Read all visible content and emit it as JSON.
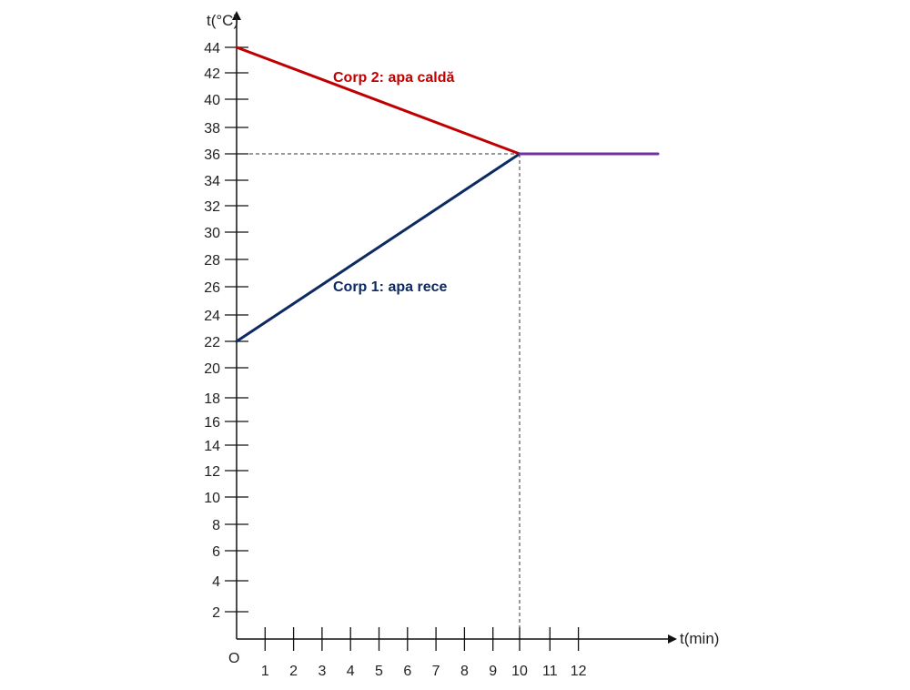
{
  "chart_data": {
    "type": "line",
    "title": "",
    "xlabel": "t(min)",
    "ylabel": "t(°C)",
    "origin_label": "O",
    "x_ticks": [
      "1",
      "2",
      "3",
      "4",
      "5",
      "6",
      "7",
      "8",
      "9",
      "10",
      "11",
      "12"
    ],
    "y_ticks": [
      "2",
      "4",
      "6",
      "8",
      "10",
      "12",
      "14",
      "16",
      "18",
      "20",
      "22",
      "24",
      "26",
      "28",
      "30",
      "32",
      "34",
      "36",
      "38",
      "40",
      "42",
      "44"
    ],
    "xlim": [
      0,
      14
    ],
    "ylim": [
      0,
      46
    ],
    "grid": false,
    "series": [
      {
        "name": "Corp 2: apa caldă",
        "color": "#c00000",
        "points": [
          [
            0,
            44
          ],
          [
            10,
            36
          ]
        ]
      },
      {
        "name": "Corp 1: apa rece",
        "color": "#0d2a63",
        "points": [
          [
            0,
            22
          ],
          [
            10,
            36
          ]
        ]
      },
      {
        "name": "",
        "color": "#7030a0",
        "points": [
          [
            10,
            36
          ],
          [
            15,
            36
          ]
        ]
      }
    ],
    "guides": {
      "equilibrium_x": 10,
      "equilibrium_y": 36
    }
  }
}
